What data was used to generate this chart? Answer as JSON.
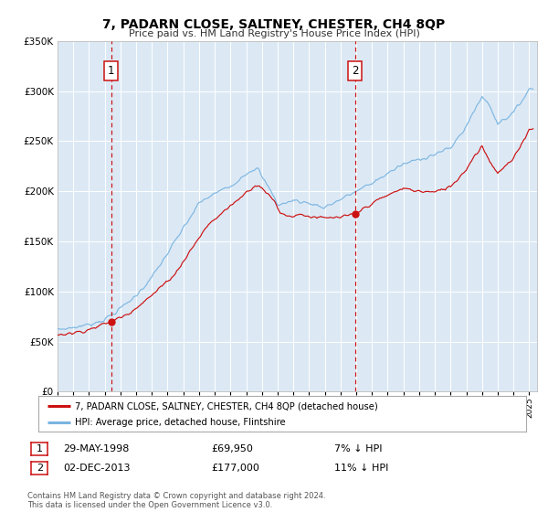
{
  "title": "7, PADARN CLOSE, SALTNEY, CHESTER, CH4 8QP",
  "subtitle": "Price paid vs. HM Land Registry's House Price Index (HPI)",
  "legend_entries": [
    "7, PADARN CLOSE, SALTNEY, CHESTER, CH4 8QP (detached house)",
    "HPI: Average price, detached house, Flintshire"
  ],
  "sale1": {
    "date": "29-MAY-1998",
    "price": 69950,
    "pct": "7%",
    "dir": "↓"
  },
  "sale2": {
    "date": "02-DEC-2013",
    "price": 177000,
    "pct": "11%",
    "dir": "↓"
  },
  "sale1_x": 1998.42,
  "sale2_x": 2013.92,
  "sale1_y": 69950,
  "sale2_y": 177000,
  "ylim": [
    0,
    350000
  ],
  "yticks": [
    0,
    50000,
    100000,
    150000,
    200000,
    250000,
    300000,
    350000
  ],
  "ytick_labels": [
    "£0",
    "£50K",
    "£100K",
    "£150K",
    "£200K",
    "£250K",
    "£300K",
    "£350K"
  ],
  "xlim_start": 1995.0,
  "xlim_end": 2025.5,
  "plot_bg_color": "#dce9f5",
  "fig_bg_color": "#ffffff",
  "hpi_line_color": "#7ab4e0",
  "price_line_color": "#cc1111",
  "sale_dot_color": "#cc1111",
  "vline_color": "#cc1111",
  "grid_color": "#ffffff",
  "footnote": "Contains HM Land Registry data © Crown copyright and database right 2024.\nThis data is licensed under the Open Government Licence v3.0."
}
